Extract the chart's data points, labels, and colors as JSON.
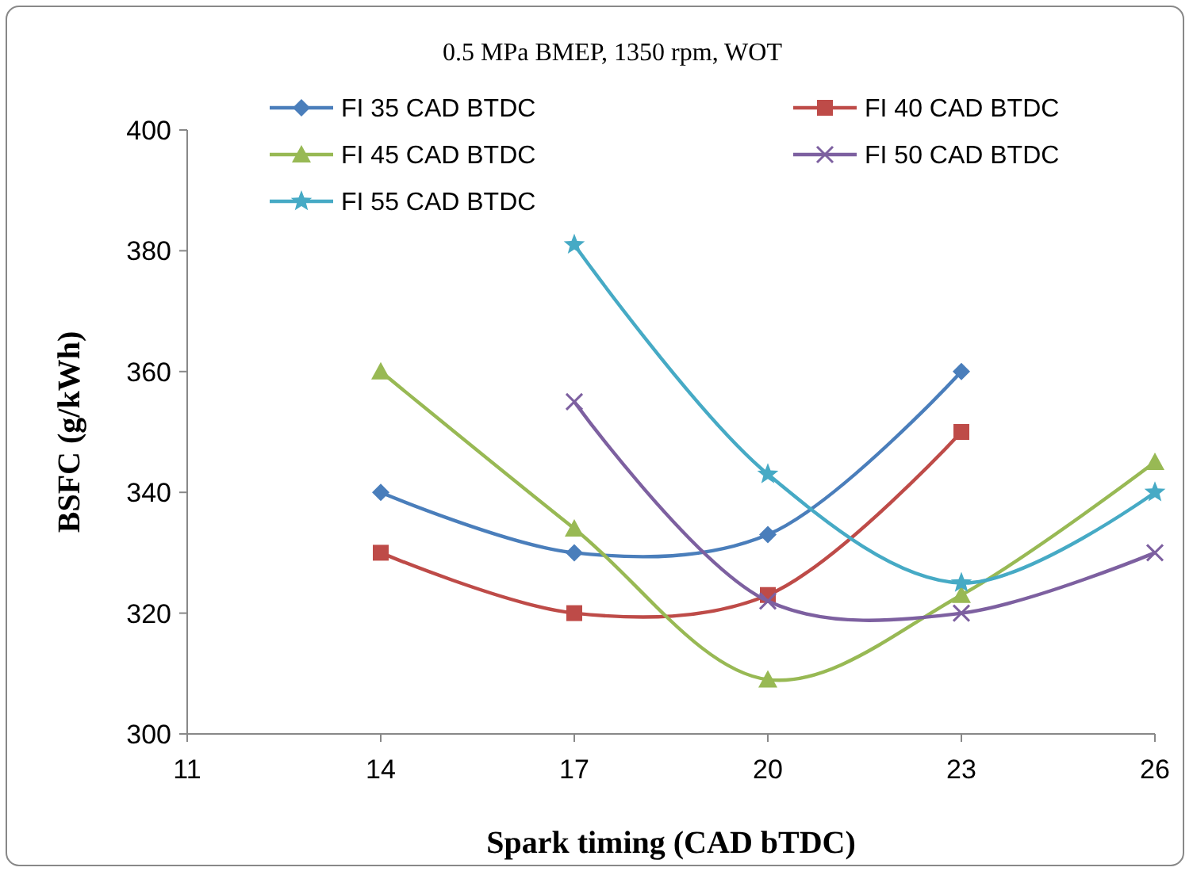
{
  "chart_data": {
    "type": "line",
    "title": "0.5 MPa BMEP, 1350 rpm, WOT",
    "xlabel": "Spark timing (CAD bTDC)",
    "ylabel": "BSFC (g/kWh)",
    "xlim": [
      11,
      26
    ],
    "xticks": [
      11,
      14,
      17,
      20,
      23,
      26
    ],
    "ylim": [
      300,
      400
    ],
    "yticks": [
      300,
      320,
      340,
      360,
      380,
      400
    ],
    "grid": false,
    "legend": "top",
    "series": [
      {
        "name": "FI 35 CAD BTDC",
        "color": "#4a7ebb",
        "marker": "diamond",
        "x": [
          14,
          17,
          20,
          23
        ],
        "values": [
          340,
          330,
          333,
          360
        ]
      },
      {
        "name": "FI 40 CAD BTDC",
        "color": "#be4b48",
        "marker": "square",
        "x": [
          14,
          17,
          20,
          23
        ],
        "values": [
          330,
          320,
          323,
          350
        ]
      },
      {
        "name": "FI 45 CAD BTDC",
        "color": "#98b954",
        "marker": "triangle",
        "x": [
          14,
          17,
          20,
          23,
          26
        ],
        "values": [
          360,
          334,
          309,
          323,
          345
        ]
      },
      {
        "name": "FI 50 CAD BTDC",
        "color": "#7d60a0",
        "marker": "cross",
        "x": [
          17,
          20,
          23,
          26
        ],
        "values": [
          355,
          322,
          320,
          330
        ]
      },
      {
        "name": "FI 55 CAD BTDC",
        "color": "#46aac5",
        "marker": "star",
        "x": [
          17,
          20,
          23,
          26
        ],
        "values": [
          381,
          343,
          325,
          340
        ]
      }
    ]
  }
}
